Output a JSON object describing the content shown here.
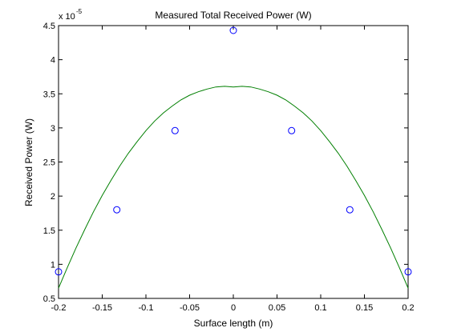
{
  "chart_data": {
    "type": "scatter",
    "title": "Measured Total Received Power (W)",
    "xlabel": "Surface length (m)",
    "ylabel": "Received Power (W)",
    "xlim": [
      -0.2,
      0.2
    ],
    "ylim": [
      0.5,
      4.5
    ],
    "y_scale_exponent": {
      "prefix": "x 10",
      "exponent": "-5"
    },
    "x_ticks": [
      {
        "value": -0.2,
        "label": "-0.2"
      },
      {
        "value": -0.15,
        "label": "-0.15"
      },
      {
        "value": -0.1,
        "label": "-0.1"
      },
      {
        "value": -0.05,
        "label": "-0.05"
      },
      {
        "value": 0,
        "label": "0"
      },
      {
        "value": 0.05,
        "label": "0.05"
      },
      {
        "value": 0.1,
        "label": "0.1"
      },
      {
        "value": 0.15,
        "label": "0.15"
      },
      {
        "value": 0.2,
        "label": "0.2"
      }
    ],
    "y_ticks": [
      {
        "value": 0.5,
        "label": "0.5"
      },
      {
        "value": 1,
        "label": "1"
      },
      {
        "value": 1.5,
        "label": "1.5"
      },
      {
        "value": 2,
        "label": "2"
      },
      {
        "value": 2.5,
        "label": "2.5"
      },
      {
        "value": 3,
        "label": "3"
      },
      {
        "value": 3.5,
        "label": "3.5"
      },
      {
        "value": 4,
        "label": "4"
      },
      {
        "value": 4.5,
        "label": "4.5"
      }
    ],
    "grid": false,
    "series": [
      {
        "kind": "scatter",
        "marker": "open-circle",
        "color": "#0000ff",
        "x": [
          -0.2,
          -0.1333,
          -0.0667,
          0,
          0.0667,
          0.1333,
          0.2
        ],
        "y": [
          0.89,
          1.8,
          2.96,
          4.43,
          2.96,
          1.8,
          0.89
        ]
      },
      {
        "kind": "line",
        "color": "#007f00",
        "x": [
          -0.2,
          -0.19,
          -0.18,
          -0.17,
          -0.16,
          -0.15,
          -0.14,
          -0.13,
          -0.12,
          -0.11,
          -0.1,
          -0.09,
          -0.08,
          -0.07,
          -0.06,
          -0.05,
          -0.04,
          -0.03,
          -0.02,
          -0.01,
          0,
          0.01,
          0.02,
          0.03,
          0.04,
          0.05,
          0.06,
          0.07,
          0.08,
          0.09,
          0.1,
          0.11,
          0.12,
          0.13,
          0.14,
          0.15,
          0.16,
          0.17,
          0.18,
          0.19,
          0.2
        ],
        "y": [
          0.65,
          0.95,
          1.24,
          1.51,
          1.77,
          2.01,
          2.23,
          2.44,
          2.63,
          2.8,
          2.96,
          3.1,
          3.22,
          3.32,
          3.41,
          3.48,
          3.53,
          3.57,
          3.6,
          3.61,
          3.6,
          3.61,
          3.6,
          3.57,
          3.53,
          3.48,
          3.41,
          3.32,
          3.22,
          3.1,
          2.96,
          2.8,
          2.63,
          2.44,
          2.23,
          2.01,
          1.77,
          1.51,
          1.24,
          0.95,
          0.65
        ]
      }
    ]
  },
  "colors": {
    "axis": "#000000",
    "background": "#ffffff"
  }
}
